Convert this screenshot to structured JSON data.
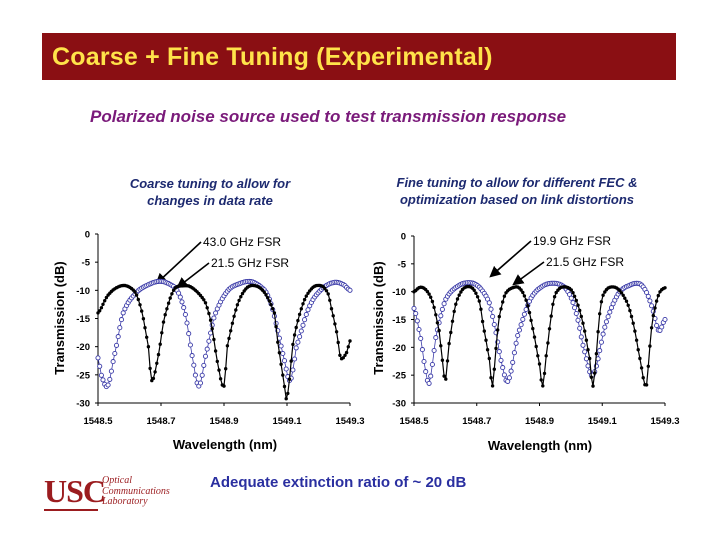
{
  "slide": {
    "title": "Coarse + Fine Tuning (Experimental)",
    "subtitle": "Polarized noise source used to test transmission response",
    "footer_note": "Adequate extinction ratio of ~ 20 dB",
    "logo": {
      "abbr": "USC",
      "line1": "Optical",
      "line2": "Communications",
      "line3": "Laboratory"
    },
    "colors": {
      "title_bar": "#8a0f13",
      "title_text": "#ffe34a",
      "subtitle": "#7a1a7a",
      "caption": "#1d2a70",
      "footer": "#2a2fa0",
      "series_black": "#000000",
      "series_blue": "#3b3ba8"
    }
  },
  "chart_data": [
    {
      "type": "line",
      "caption_line1": "Coarse tuning to allow for",
      "caption_line2": "changes in data rate",
      "xlabel": "Wavelength (nm)",
      "ylabel": "Transmission (dB)",
      "xlim": [
        1548.5,
        1549.3
      ],
      "ylim": [
        -30,
        0
      ],
      "xticks": [
        1548.5,
        1548.7,
        1548.9,
        1549.1,
        1549.3
      ],
      "xtick_labels": [
        "1548.5",
        "1548.7",
        "1548.9",
        "1549.1",
        "1549.3"
      ],
      "yticks": [
        0,
        -5,
        -10,
        -15,
        -20,
        -25,
        -30
      ],
      "ytick_labels": [
        "0",
        "-5",
        "-10",
        "-15",
        "-20",
        "-25",
        "-30"
      ],
      "series": [
        {
          "name": "43.0 GHz FSR",
          "style": "filled",
          "color": "#000000",
          "x": [
            1548.5,
            1548.53,
            1548.56,
            1548.59,
            1548.62,
            1548.64,
            1548.66,
            1548.67,
            1548.69,
            1548.71,
            1548.74,
            1548.77,
            1548.8,
            1548.84,
            1548.86,
            1548.88,
            1548.9,
            1548.91,
            1548.94,
            1548.97,
            1549.0,
            1549.03,
            1549.06,
            1549.07,
            1549.09,
            1549.1,
            1549.12,
            1549.15,
            1549.18,
            1549.21,
            1549.23,
            1549.24,
            1549.26,
            1549.27,
            1549.29,
            1549.3
          ],
          "y": [
            -14,
            -11,
            -9.5,
            -9.2,
            -10.5,
            -14,
            -20,
            -26,
            -22,
            -15,
            -10,
            -9.2,
            -9.6,
            -12,
            -16,
            -23,
            -27,
            -20,
            -13,
            -9.7,
            -9.2,
            -10.5,
            -14,
            -19,
            -26,
            -29,
            -19,
            -12.5,
            -9.6,
            -9.2,
            -10.5,
            -13,
            -18,
            -22,
            -21,
            -19
          ]
        },
        {
          "name": "21.5 GHz FSR",
          "style": "open",
          "color": "#3b3ba8",
          "x": [
            1548.5,
            1548.51,
            1548.53,
            1548.55,
            1548.58,
            1548.62,
            1548.66,
            1548.7,
            1548.74,
            1548.76,
            1548.78,
            1548.8,
            1548.82,
            1548.84,
            1548.87,
            1548.91,
            1548.95,
            1548.99,
            1549.03,
            1549.05,
            1549.07,
            1549.09,
            1549.11,
            1549.13,
            1549.17,
            1549.21,
            1549.25,
            1549.28,
            1549.3
          ],
          "y": [
            -22,
            -25,
            -27,
            -22,
            -14,
            -10.5,
            -9,
            -8.4,
            -9.3,
            -11,
            -15,
            -22,
            -27,
            -22,
            -14.5,
            -10.2,
            -8.8,
            -8.5,
            -10,
            -12.5,
            -17,
            -22,
            -26,
            -20,
            -13,
            -9.8,
            -8.6,
            -9,
            -10
          ]
        }
      ],
      "annotations": [
        "43.0 GHz FSR",
        "21.5 GHz FSR"
      ]
    },
    {
      "type": "line",
      "caption_line1": "Fine tuning to allow for different FEC &",
      "caption_line2": "optimization based on link distortions",
      "xlabel": "Wavelength (nm)",
      "ylabel": "Transmission (dB)",
      "xlim": [
        1548.5,
        1549.3
      ],
      "ylim": [
        -30,
        0
      ],
      "xticks": [
        1548.5,
        1548.7,
        1548.9,
        1549.1,
        1549.3
      ],
      "xtick_labels": [
        "1548.5",
        "1548.7",
        "1548.9",
        "1549.1",
        "1549.3"
      ],
      "yticks": [
        0,
        -5,
        -10,
        -15,
        -20,
        -25,
        -30
      ],
      "ytick_labels": [
        "0",
        "-5",
        "-10",
        "-15",
        "-20",
        "-25",
        "-30"
      ],
      "series": [
        {
          "name": "19.9 GHz FSR",
          "style": "filled",
          "color": "#000000",
          "x": [
            1548.5,
            1548.52,
            1548.54,
            1548.56,
            1548.58,
            1548.59,
            1548.6,
            1548.61,
            1548.63,
            1548.65,
            1548.67,
            1548.69,
            1548.71,
            1548.72,
            1548.74,
            1548.75,
            1548.76,
            1548.77,
            1548.79,
            1548.82,
            1548.84,
            1548.86,
            1548.88,
            1548.9,
            1548.91,
            1548.92,
            1548.94,
            1548.95,
            1548.97,
            1549.0,
            1549.02,
            1549.04,
            1549.06,
            1549.07,
            1549.08,
            1549.09,
            1549.1,
            1549.12,
            1549.15,
            1549.18,
            1549.2,
            1549.22,
            1549.24,
            1549.25,
            1549.26,
            1549.28,
            1549.3
          ],
          "y": [
            -10,
            -9.2,
            -9.8,
            -12,
            -17,
            -22,
            -26,
            -20,
            -13,
            -10,
            -9.1,
            -9.6,
            -12,
            -16,
            -22,
            -27,
            -21,
            -15,
            -10.5,
            -9.2,
            -9.6,
            -12,
            -17,
            -23,
            -27,
            -22,
            -13.5,
            -10.5,
            -9.2,
            -9.6,
            -12,
            -16,
            -22,
            -27,
            -22,
            -15,
            -11,
            -9.3,
            -9.5,
            -12,
            -16,
            -22,
            -27,
            -21,
            -15,
            -10.5,
            -9.3
          ]
        },
        {
          "name": "21.5 GHz FSR",
          "style": "open",
          "color": "#3b3ba8",
          "x": [
            1548.5,
            1548.52,
            1548.54,
            1548.55,
            1548.57,
            1548.6,
            1548.64,
            1548.68,
            1548.71,
            1548.74,
            1548.76,
            1548.78,
            1548.8,
            1548.83,
            1548.87,
            1548.91,
            1548.95,
            1548.98,
            1549.0,
            1549.02,
            1549.04,
            1549.07,
            1549.11,
            1549.15,
            1549.19,
            1549.22,
            1549.24,
            1549.26,
            1549.28,
            1549.3
          ],
          "y": [
            -13,
            -18,
            -25,
            -26,
            -18,
            -11.5,
            -9,
            -8.4,
            -9.3,
            -12,
            -17,
            -23,
            -26,
            -18,
            -11.5,
            -9,
            -8.5,
            -9.2,
            -11,
            -14.5,
            -20,
            -25,
            -16,
            -10.5,
            -8.8,
            -8.6,
            -10,
            -13,
            -17,
            -15
          ]
        }
      ],
      "annotations": [
        "19.9 GHz FSR",
        "21.5 GHz FSR"
      ]
    }
  ]
}
